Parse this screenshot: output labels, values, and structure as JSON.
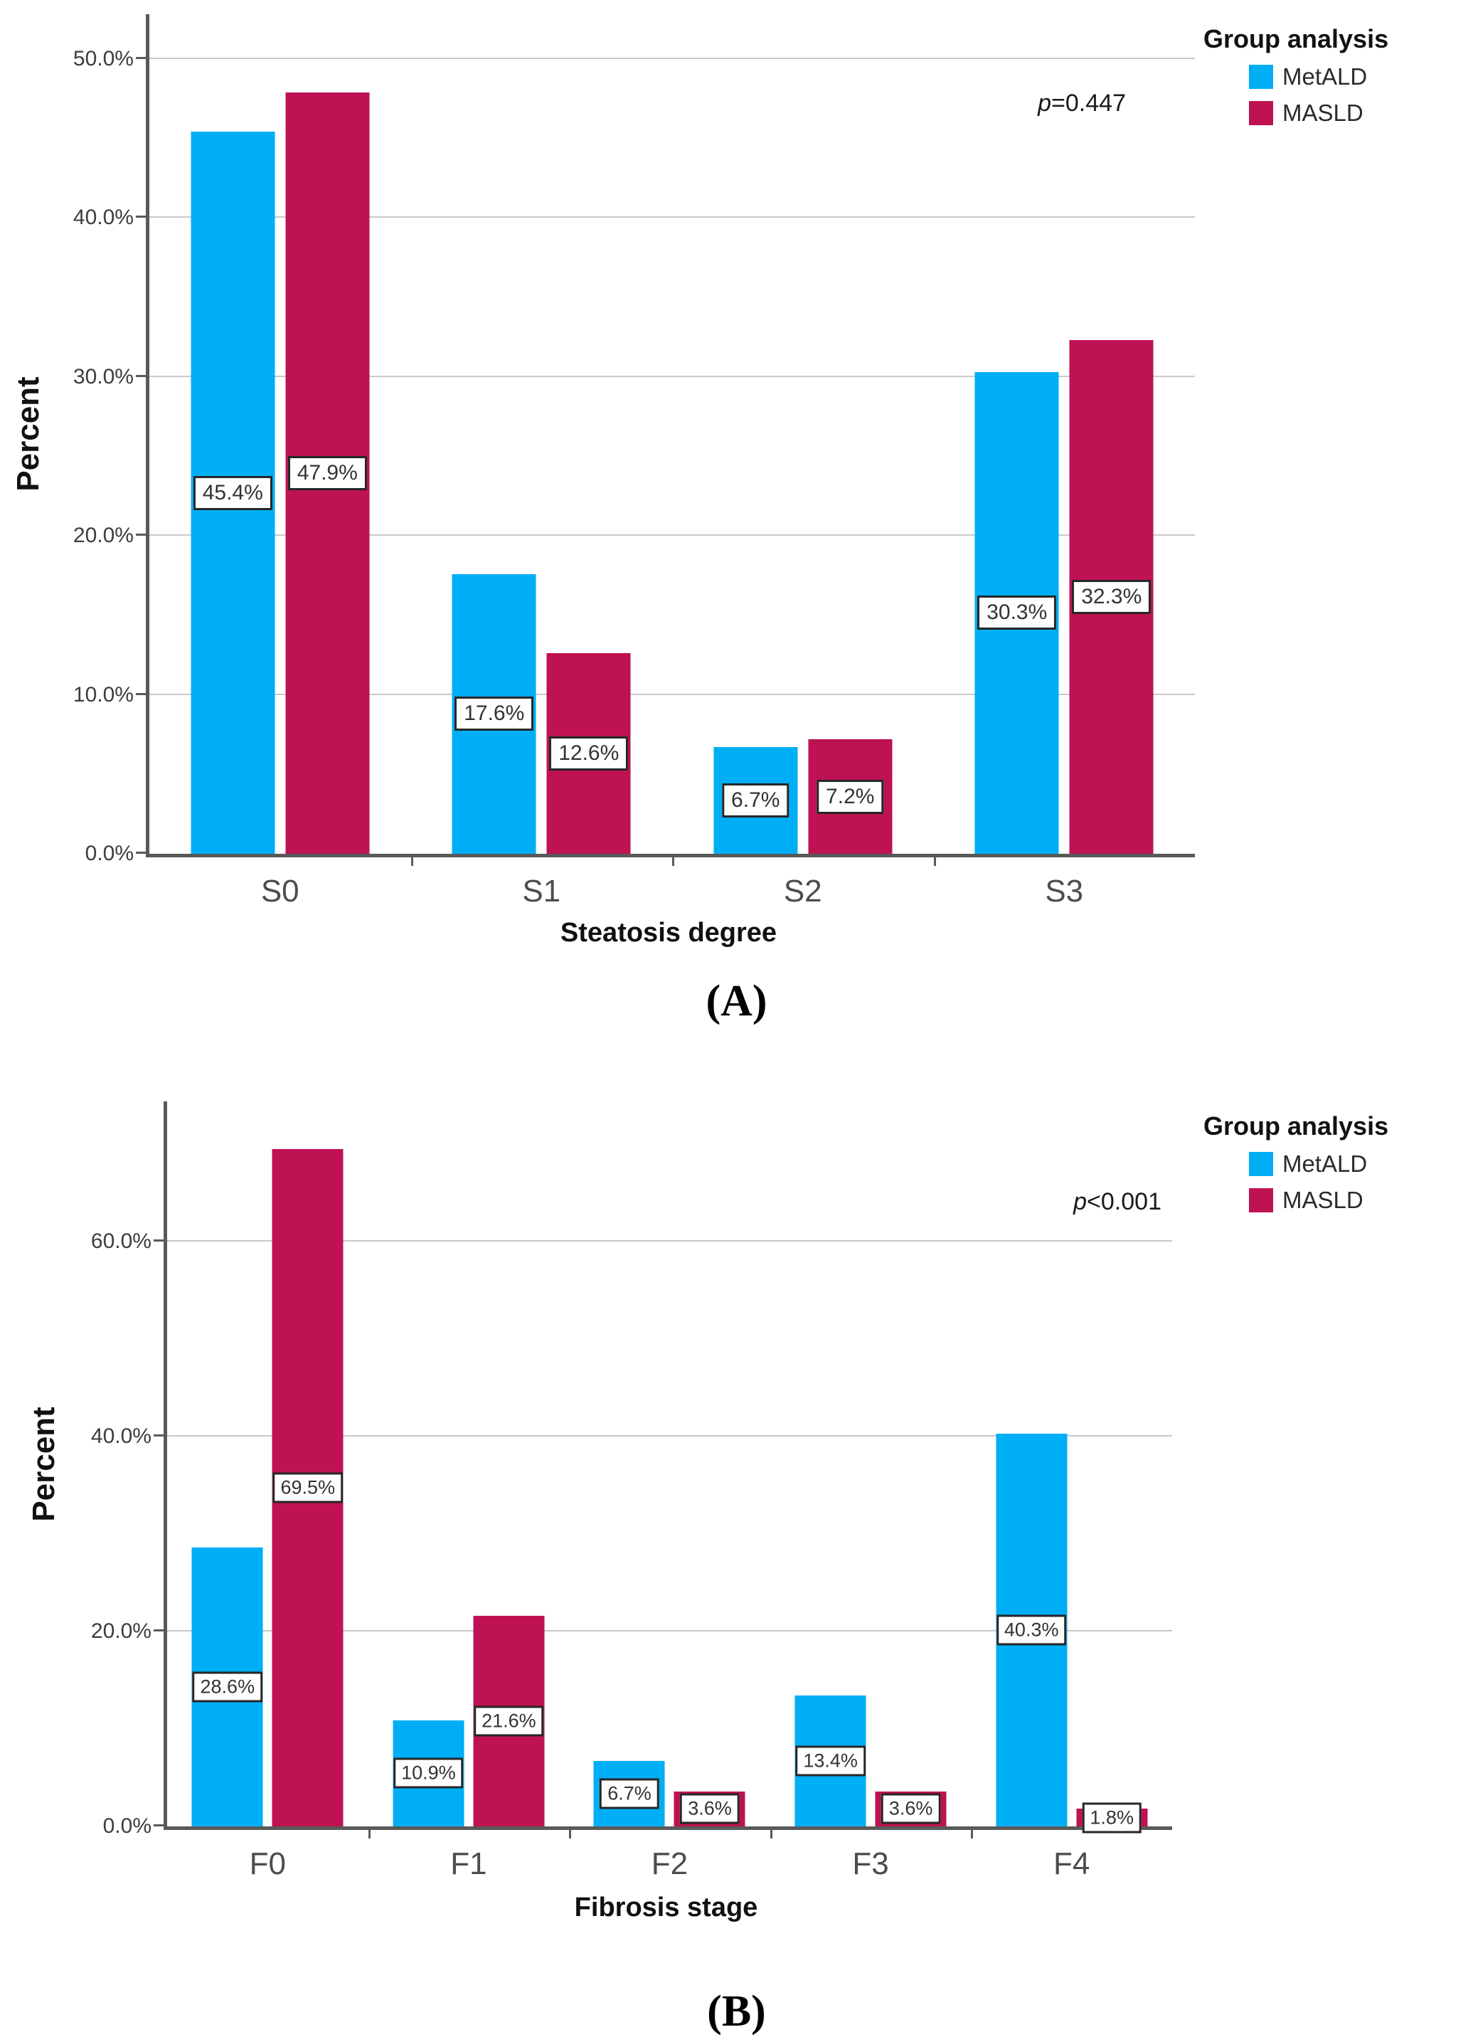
{
  "chart_data": [
    {
      "type": "bar",
      "panel_label": "(A)",
      "legend_title": "Group analysis",
      "legend_position": "top-right",
      "p_label": {
        "italic": "p",
        "rest": "=0.447"
      },
      "xlabel": "Steatosis degree",
      "ylabel": "Percent",
      "categories": [
        "S0",
        "S1",
        "S2",
        "S3"
      ],
      "series": [
        {
          "name": "MetALD",
          "color": "#00AEF5",
          "values": [
            45.4,
            17.6,
            6.7,
            30.3
          ]
        },
        {
          "name": "MASLD",
          "color": "#BE1253",
          "values": [
            47.9,
            12.6,
            7.2,
            32.3
          ]
        }
      ],
      "bar_value_labels": [
        [
          "45.4%",
          "17.6%",
          "6.7%",
          "30.3%"
        ],
        [
          "47.9%",
          "12.6%",
          "7.2%",
          "32.3%"
        ]
      ],
      "ylim": [
        0,
        52.8
      ],
      "yticks": [
        0,
        10,
        20,
        30,
        40,
        50
      ],
      "ytick_labels": [
        "0.0%",
        "10.0%",
        "20.0%",
        "30.0%",
        "40.0%",
        "50.0%"
      ],
      "grid": true
    },
    {
      "type": "bar",
      "panel_label": "(B)",
      "legend_title": "Group analysis",
      "legend_position": "top-right",
      "p_label": {
        "italic": "p",
        "rest": "<0.001"
      },
      "xlabel": "Fibrosis stage",
      "ylabel": "Percent",
      "categories": [
        "F0",
        "F1",
        "F2",
        "F3",
        "F4"
      ],
      "series": [
        {
          "name": "MetALD",
          "color": "#00AEF5",
          "values": [
            28.6,
            10.9,
            6.7,
            13.4,
            40.3
          ]
        },
        {
          "name": "MASLD",
          "color": "#BE1253",
          "values": [
            69.5,
            21.6,
            3.6,
            3.6,
            1.8
          ]
        }
      ],
      "bar_value_labels": [
        [
          "28.6%",
          "10.9%",
          "6.7%",
          "13.4%",
          "40.3%"
        ],
        [
          "69.5%",
          "21.6%",
          "3.6%",
          "3.6%",
          "1.8%"
        ]
      ],
      "ylim": [
        0,
        74.4
      ],
      "yticks": [
        0,
        20,
        40,
        60
      ],
      "ytick_labels": [
        "0.0%",
        "20.0%",
        "40.0%",
        "60.0%"
      ],
      "grid": true
    }
  ]
}
